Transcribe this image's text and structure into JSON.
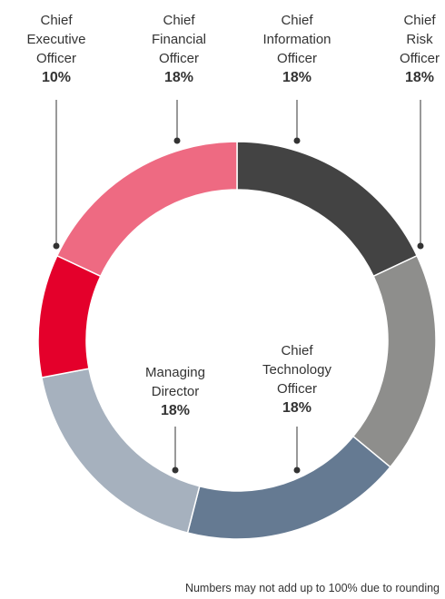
{
  "chart_data": {
    "type": "donut",
    "categories": [
      "Chief Information Officer",
      "Chief Risk Officer",
      "Chief Technology Officer",
      "Managing Director",
      "Chief Executive Officer",
      "Chief Financial Officer"
    ],
    "values": [
      18,
      18,
      18,
      18,
      10,
      18
    ],
    "value_labels": [
      "18%",
      "18%",
      "18%",
      "18%",
      "10%",
      "18%"
    ],
    "colors": [
      "#434343",
      "#8e8e8c",
      "#657a92",
      "#a6b1be",
      "#e4002b",
      "#ee6a82"
    ],
    "note": "Numbers may not add up to 100% due to rounding"
  }
}
